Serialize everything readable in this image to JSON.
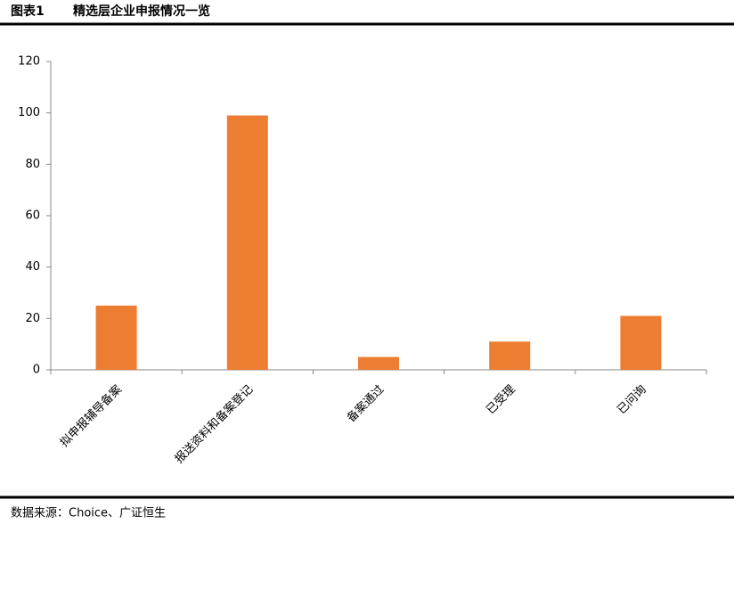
{
  "chart_data": {
    "type": "bar",
    "figure_label": "图表1",
    "title": "精选层企业申报情况一览",
    "categories": [
      "拟申报辅导备案",
      "报送资料和备案登记",
      "备案通过",
      "已受理",
      "已问询"
    ],
    "values": [
      25,
      99,
      5,
      11,
      21
    ],
    "color": "#ed7d31",
    "ylim": [
      0,
      120
    ],
    "yticks": [
      0,
      20,
      40,
      60,
      80,
      100,
      120
    ],
    "grid": false,
    "source": "数据来源：Choice、广证恒生"
  }
}
